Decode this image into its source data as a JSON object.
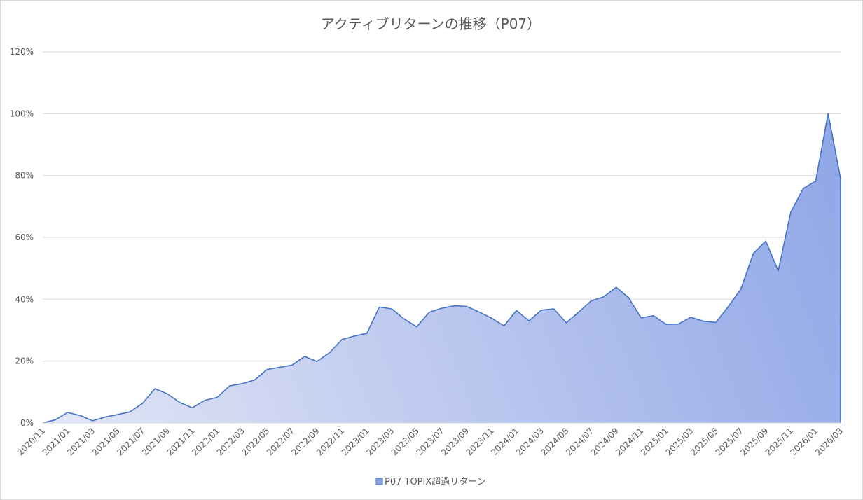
{
  "chart_data": {
    "type": "area",
    "title": "アクティブリターンの推移（P07）",
    "xlabel": "",
    "ylabel": "",
    "ylim": [
      0,
      1.2
    ],
    "y_ticks": [
      0,
      0.2,
      0.4,
      0.6,
      0.8,
      1.0,
      1.2
    ],
    "y_tick_labels": [
      "0%",
      "20%",
      "40%",
      "60%",
      "80%",
      "100%",
      "120%"
    ],
    "x_tick_labels": [
      "2020/11",
      "2021/01",
      "2021/03",
      "2021/05",
      "2021/07",
      "2021/09",
      "2021/11",
      "2022/01",
      "2022/03",
      "2022/05",
      "2022/07",
      "2022/09",
      "2022/11",
      "2023/01",
      "2023/03",
      "2023/05",
      "2023/07",
      "2023/09",
      "2023/11",
      "2024/01",
      "2024/03",
      "2024/05",
      "2024/07",
      "2024/09",
      "2024/11",
      "2025/01",
      "2025/03",
      "2025/05",
      "2025/07",
      "2025/09",
      "2025/11",
      "2026/01",
      "2026/03"
    ],
    "grid": true,
    "legend_position": "bottom",
    "colors": {
      "line": "#4472c4",
      "fill_light": "#e3e6f6",
      "fill_dark": "#8fa6e6",
      "grid": "#d9d9d9",
      "text": "#595959"
    },
    "series": [
      {
        "name": "P07 TOPIX超過リターン",
        "values": [
          0.0,
          0.01,
          0.034,
          0.024,
          0.007,
          0.019,
          0.027,
          0.036,
          0.063,
          0.111,
          0.094,
          0.066,
          0.049,
          0.073,
          0.083,
          0.12,
          0.127,
          0.139,
          0.173,
          0.18,
          0.187,
          0.215,
          0.199,
          0.227,
          0.27,
          0.281,
          0.29,
          0.375,
          0.369,
          0.336,
          0.311,
          0.358,
          0.371,
          0.379,
          0.377,
          0.359,
          0.339,
          0.314,
          0.364,
          0.33,
          0.365,
          0.369,
          0.324,
          0.359,
          0.395,
          0.408,
          0.439,
          0.405,
          0.34,
          0.347,
          0.319,
          0.32,
          0.342,
          0.329,
          0.325,
          0.377,
          0.433,
          0.548,
          0.588,
          0.492,
          0.681,
          0.758,
          0.782,
          1.0,
          0.79
        ]
      }
    ]
  }
}
